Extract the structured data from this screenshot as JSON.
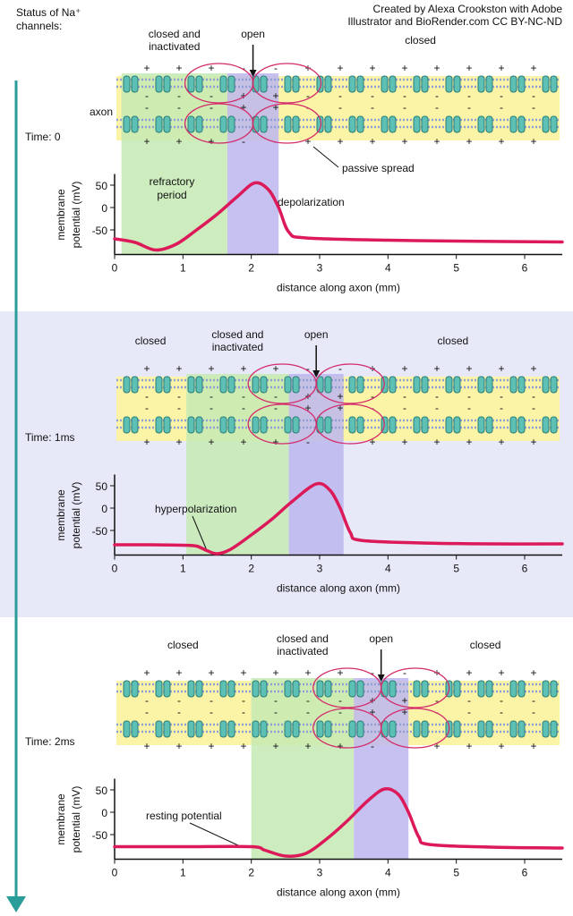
{
  "credit": [
    "Created by Alexa Crookston with Adobe",
    "Illustrator and BioRender.com CC BY-NC-ND"
  ],
  "status_label": [
    "Status of Na⁺",
    "channels:"
  ],
  "charge_signs": [
    "+",
    "-",
    "++"
  ],
  "chart_data": [
    {
      "type": "line",
      "time_label": "Time: 0",
      "states": [
        {
          "label": [
            "closed and",
            "inactivated"
          ],
          "x": [
            0.1,
            1.65
          ],
          "color": "#5b9b3f",
          "shade": "#c6eab4"
        },
        {
          "label": [
            "open"
          ],
          "x": [
            1.65,
            2.4
          ],
          "color": "#8a55b8",
          "shade": "#bcb6ef"
        },
        {
          "label": [
            "closed"
          ],
          "x": [
            2.4,
            6.55
          ],
          "color": "#b5853e"
        }
      ],
      "diagram_labels": [
        "axon",
        "passive spread"
      ],
      "annotations": [
        [
          "refractory",
          "period"
        ],
        [
          "depolarization"
        ]
      ],
      "x_label": "distance along axon (mm)",
      "y_label": [
        "membrane",
        "potential (mV)"
      ],
      "xlim": [
        0,
        6.55
      ],
      "ylim": [
        -105,
        75
      ],
      "xticks": [
        0,
        1,
        2,
        3,
        4,
        5,
        6
      ],
      "yticks": [
        -50,
        0,
        50
      ],
      "color": "#dc1a5a",
      "x": [
        0,
        0.3,
        0.6,
        0.9,
        1.2,
        1.5,
        1.8,
        2.05,
        2.25,
        2.4,
        2.55,
        2.8,
        4,
        5,
        6.55
      ],
      "values": [
        -70,
        -78,
        -95,
        -82,
        -50,
        -15,
        25,
        55,
        40,
        0,
        -55,
        -68,
        -73,
        -75,
        -77
      ]
    },
    {
      "type": "line",
      "time_label": "Time: 1ms",
      "states": [
        {
          "label": [
            "closed"
          ],
          "x": [
            0,
            1.05
          ],
          "color": "#b5853e"
        },
        {
          "label": [
            "closed and",
            "inactivated"
          ],
          "x": [
            1.05,
            2.55
          ],
          "color": "#5b9b3f",
          "shade": "#c6eab4"
        },
        {
          "label": [
            "open"
          ],
          "x": [
            2.55,
            3.35
          ],
          "color": "#8a55b8",
          "shade": "#bcb6ef"
        },
        {
          "label": [
            "closed"
          ],
          "x": [
            3.35,
            6.55
          ],
          "color": "#b5853e"
        }
      ],
      "annotations": [
        [
          "hyperpolarization"
        ]
      ],
      "x_label": "distance along axon (mm)",
      "y_label": [
        "membrane",
        "potential (mV)"
      ],
      "xlim": [
        0,
        6.55
      ],
      "ylim": [
        -105,
        75
      ],
      "xticks": [
        0,
        1,
        2,
        3,
        4,
        5,
        6
      ],
      "yticks": [
        -50,
        0,
        50
      ],
      "color": "#dc1a5a",
      "x": [
        0,
        0.5,
        1,
        1.2,
        1.35,
        1.5,
        1.7,
        2,
        2.3,
        2.6,
        2.95,
        3.15,
        3.3,
        3.45,
        3.6,
        4.5,
        5.5,
        6.55
      ],
      "values": [
        -82,
        -82,
        -83,
        -85,
        -95,
        -102,
        -92,
        -60,
        -25,
        15,
        54,
        40,
        0,
        -55,
        -72,
        -78,
        -80,
        -80
      ]
    },
    {
      "type": "line",
      "time_label": "Time: 2ms",
      "states": [
        {
          "label": [
            "closed"
          ],
          "x": [
            0,
            2.0
          ],
          "color": "#b5853e"
        },
        {
          "label": [
            "closed and",
            "inactivated"
          ],
          "x": [
            2.0,
            3.5
          ],
          "color": "#5b9b3f",
          "shade": "#c6eab4"
        },
        {
          "label": [
            "open"
          ],
          "x": [
            3.5,
            4.3
          ],
          "color": "#8a55b8",
          "shade": "#bcb6ef"
        },
        {
          "label": [
            "closed"
          ],
          "x": [
            4.3,
            6.55
          ],
          "color": "#b5853e"
        }
      ],
      "annotations": [
        [
          "resting potential"
        ]
      ],
      "x_label": "distance along axon (mm)",
      "y_label": [
        "membrane",
        "potential (mV)"
      ],
      "xlim": [
        0,
        6.55
      ],
      "ylim": [
        -105,
        75
      ],
      "xticks": [
        0,
        1,
        2,
        3,
        4,
        5,
        6
      ],
      "yticks": [
        -50,
        0,
        50
      ],
      "color": "#dc1a5a",
      "x": [
        0,
        1,
        2,
        2.2,
        2.5,
        2.8,
        3.1,
        3.4,
        3.7,
        3.95,
        4.15,
        4.3,
        4.45,
        4.6,
        5.5,
        6.55
      ],
      "values": [
        -77,
        -77,
        -77,
        -85,
        -98,
        -92,
        -60,
        -20,
        25,
        52,
        40,
        0,
        -55,
        -72,
        -78,
        -80
      ]
    }
  ]
}
